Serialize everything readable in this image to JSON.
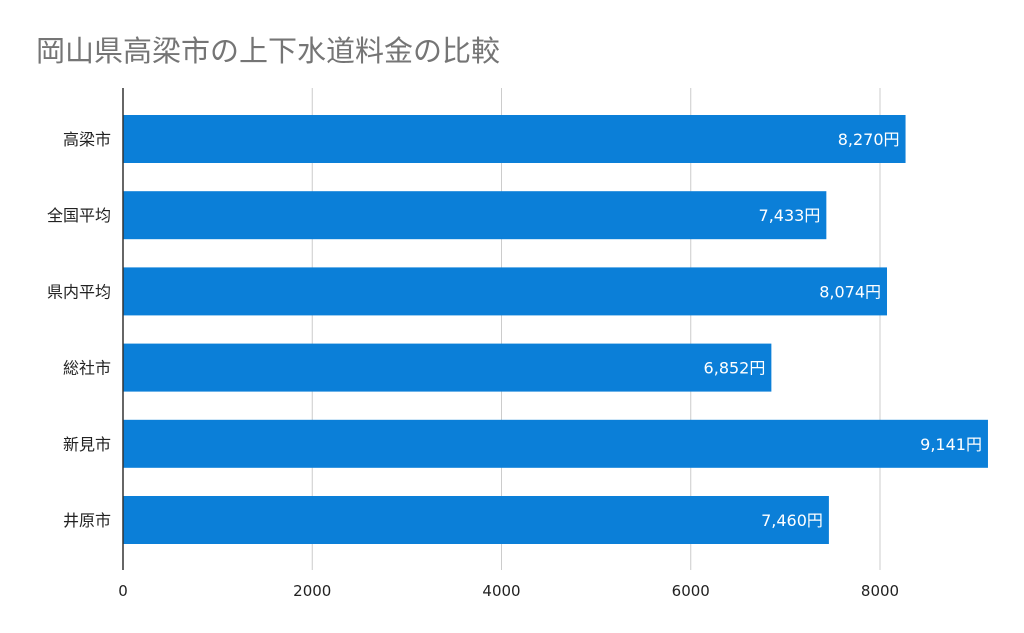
{
  "chart_data": {
    "type": "bar",
    "orientation": "horizontal",
    "title": "岡山県高梁市の上下水道料金の比較",
    "categories": [
      "高梁市",
      "全国平均",
      "県内平均",
      "総社市",
      "新見市",
      "井原市"
    ],
    "values": [
      8270,
      7433,
      8074,
      6852,
      9141,
      7460
    ],
    "data_labels": [
      "8,270円",
      "7,433円",
      "8,074円",
      "6,852円",
      "9,141円",
      "7,460円"
    ],
    "xticks": [
      "0",
      "2000",
      "4000",
      "6000",
      "8000"
    ],
    "xtick_values": [
      0,
      2000,
      4000,
      6000,
      8000
    ],
    "xlim": [
      0,
      9300
    ],
    "grid": true,
    "colors": {
      "bar": "#0b7fd8",
      "title": "#757575",
      "grid": "#cccccc"
    }
  }
}
